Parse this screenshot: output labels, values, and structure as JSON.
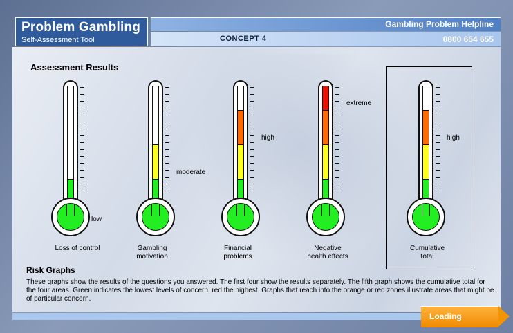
{
  "app": {
    "title": "Problem Gambling",
    "subtitle": "Self-Assessment Tool"
  },
  "header": {
    "helpline_label": "Gambling Problem Helpline",
    "concept": "CONCEPT 4",
    "phone": "0800 654 655"
  },
  "section": {
    "heading": "Assessment Results"
  },
  "thermometers": [
    {
      "name": "loss-of-control",
      "label_line1": "Loss of control",
      "label_line2": "",
      "level": "low",
      "fill_levels": 1
    },
    {
      "name": "gambling-motivation",
      "label_line1": "Gambling",
      "label_line2": "motivation",
      "level": "moderate",
      "fill_levels": 2
    },
    {
      "name": "financial-problems",
      "label_line1": "Financial",
      "label_line2": "problems",
      "level": "high",
      "fill_levels": 3
    },
    {
      "name": "negative-health-effects",
      "label_line1": "Negative",
      "label_line2": "health effects",
      "level": "extreme",
      "fill_levels": 4
    },
    {
      "name": "cumulative-total",
      "label_line1": "Cumulative",
      "label_line2": "total",
      "level": "high",
      "fill_levels": 3
    }
  ],
  "colors": {
    "green": "#22ee22",
    "yellow": "#ffff22",
    "orange": "#ff6a00",
    "red": "#ee1100"
  },
  "risk": {
    "heading": "Risk Graphs",
    "text": "These graphs show the results of the questions you answered. The first four show the results separately. The fifth graph shows the cumulative total for the four areas.  Green indicates the lowest levels of concern, red the highest. Graphs that reach into the orange or red zones illustrate areas that might be of particular concern."
  },
  "footer": {
    "loading_label": "Loading"
  }
}
